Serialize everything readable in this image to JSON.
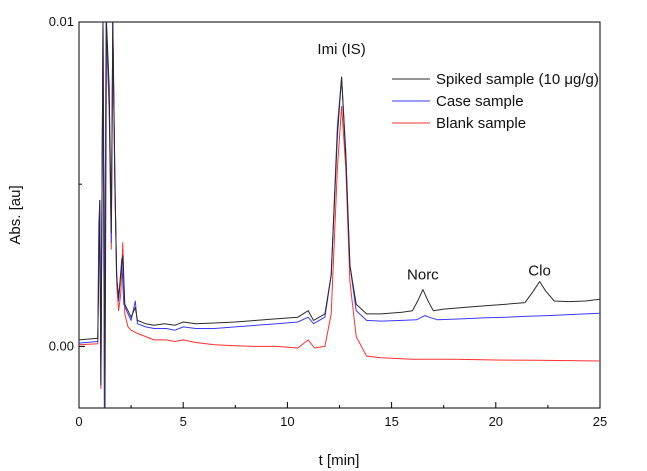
{
  "chart_data": {
    "type": "line",
    "title": "",
    "xlabel": "t [min]",
    "ylabel": "Abs. [au]",
    "xlim": [
      0,
      25
    ],
    "ylim": [
      -0.0019,
      0.01
    ],
    "x_ticks": [
      0,
      5,
      10,
      15,
      20,
      25
    ],
    "y_ticks": [
      0.0,
      0.01
    ],
    "y_tick_labels": [
      "0.00",
      "0.01"
    ],
    "grid": false,
    "legend_position": "top-right",
    "annotations": [
      {
        "text": "Imi (IS)",
        "x": 12.6,
        "y": 0.0087
      },
      {
        "text": "Norc",
        "x": 16.5,
        "y": 0.00175
      },
      {
        "text": "Clo",
        "x": 22.1,
        "y": 0.00188
      }
    ],
    "series": [
      {
        "name": "Spiked sample (10 μg/g)",
        "color": "#2b2b2b",
        "points": [
          [
            0,
            0.0002
          ],
          [
            0.9,
            0.00025
          ],
          [
            1.0,
            0.0045
          ],
          [
            1.05,
            -0.0012
          ],
          [
            1.15,
            0.01
          ],
          [
            1.25,
            -0.0019
          ],
          [
            1.32,
            0.01
          ],
          [
            1.45,
            0.008
          ],
          [
            1.55,
            0.0035
          ],
          [
            1.62,
            0.01
          ],
          [
            1.72,
            0.0055
          ],
          [
            1.8,
            0.0022
          ],
          [
            1.9,
            0.0015
          ],
          [
            2.0,
            0.0022
          ],
          [
            2.1,
            0.0028
          ],
          [
            2.2,
            0.0013
          ],
          [
            2.35,
            0.0011
          ],
          [
            2.5,
            0.0009
          ],
          [
            2.7,
            0.0012
          ],
          [
            2.8,
            0.0008
          ],
          [
            3.2,
            0.0007
          ],
          [
            3.6,
            0.00065
          ],
          [
            4.1,
            0.0007
          ],
          [
            4.6,
            0.00065
          ],
          [
            5.0,
            0.00075
          ],
          [
            5.6,
            0.0007
          ],
          [
            6.5,
            0.00072
          ],
          [
            7.5,
            0.00075
          ],
          [
            8.5,
            0.0008
          ],
          [
            9.5,
            0.00085
          ],
          [
            10.5,
            0.0009
          ],
          [
            11.0,
            0.0011
          ],
          [
            11.25,
            0.0008
          ],
          [
            11.8,
            0.001
          ],
          [
            12.1,
            0.0022
          ],
          [
            12.4,
            0.0065
          ],
          [
            12.6,
            0.0083
          ],
          [
            12.8,
            0.0058
          ],
          [
            13.0,
            0.0025
          ],
          [
            13.3,
            0.0013
          ],
          [
            13.8,
            0.001
          ],
          [
            14.5,
            0.001
          ],
          [
            15.5,
            0.00105
          ],
          [
            16.0,
            0.0011
          ],
          [
            16.25,
            0.0014
          ],
          [
            16.5,
            0.00175
          ],
          [
            16.75,
            0.0014
          ],
          [
            17.0,
            0.0011
          ],
          [
            17.5,
            0.00115
          ],
          [
            18.5,
            0.0012
          ],
          [
            19.5,
            0.00125
          ],
          [
            20.5,
            0.0013
          ],
          [
            21.4,
            0.00135
          ],
          [
            21.8,
            0.0017
          ],
          [
            22.1,
            0.002
          ],
          [
            22.4,
            0.0017
          ],
          [
            22.8,
            0.0014
          ],
          [
            23.5,
            0.00138
          ],
          [
            24.3,
            0.0014
          ],
          [
            25,
            0.00145
          ]
        ]
      },
      {
        "name": "Case sample",
        "color": "#3a3aff",
        "points": [
          [
            0,
            0.0001
          ],
          [
            0.9,
            0.00015
          ],
          [
            0.95,
            0.0038
          ],
          [
            1.0,
            0.0045
          ],
          [
            1.05,
            -0.0011
          ],
          [
            1.15,
            0.01
          ],
          [
            1.22,
            -0.0019
          ],
          [
            1.3,
            0.01
          ],
          [
            1.45,
            0.0075
          ],
          [
            1.55,
            0.0032
          ],
          [
            1.62,
            0.01
          ],
          [
            1.72,
            0.0051
          ],
          [
            1.82,
            0.002
          ],
          [
            1.9,
            0.0014
          ],
          [
            2.05,
            0.0027
          ],
          [
            2.15,
            0.0013
          ],
          [
            2.35,
            0.001
          ],
          [
            2.5,
            0.0008
          ],
          [
            2.7,
            0.0014
          ],
          [
            2.8,
            0.0007
          ],
          [
            3.2,
            0.0006
          ],
          [
            3.6,
            0.00055
          ],
          [
            4.2,
            0.00055
          ],
          [
            4.6,
            0.0005
          ],
          [
            5.0,
            0.0006
          ],
          [
            5.6,
            0.00055
          ],
          [
            6.5,
            0.00055
          ],
          [
            7.5,
            0.0006
          ],
          [
            8.5,
            0.00065
          ],
          [
            9.5,
            0.0007
          ],
          [
            10.5,
            0.00075
          ],
          [
            11.0,
            0.0009
          ],
          [
            11.25,
            0.0007
          ],
          [
            11.8,
            0.0009
          ],
          [
            12.1,
            0.0022
          ],
          [
            12.4,
            0.0068
          ],
          [
            12.6,
            0.0083
          ],
          [
            12.8,
            0.006
          ],
          [
            13.0,
            0.0025
          ],
          [
            13.3,
            0.0011
          ],
          [
            13.8,
            0.0008
          ],
          [
            14.5,
            0.00078
          ],
          [
            15.5,
            0.0008
          ],
          [
            16.2,
            0.00082
          ],
          [
            16.6,
            0.00095
          ],
          [
            16.8,
            0.0009
          ],
          [
            17.2,
            0.00082
          ],
          [
            18.5,
            0.00085
          ],
          [
            19.5,
            0.00088
          ],
          [
            20.5,
            0.0009
          ],
          [
            21.5,
            0.00093
          ],
          [
            22.5,
            0.00095
          ],
          [
            23.5,
            0.00098
          ],
          [
            24.3,
            0.001
          ],
          [
            25,
            0.00102
          ]
        ]
      },
      {
        "name": "Blank sample",
        "color": "#ff3030",
        "points": [
          [
            0,
            5e-05
          ],
          [
            0.9,
            8e-05
          ],
          [
            0.95,
            0.0032
          ],
          [
            1.0,
            0.0042
          ],
          [
            1.05,
            -0.0013
          ],
          [
            1.15,
            0.01
          ],
          [
            1.22,
            -0.0019
          ],
          [
            1.3,
            0.01
          ],
          [
            1.45,
            0.0072
          ],
          [
            1.55,
            0.003
          ],
          [
            1.62,
            0.01
          ],
          [
            1.72,
            0.005
          ],
          [
            1.82,
            0.0018
          ],
          [
            1.9,
            0.0011
          ],
          [
            2.0,
            0.0016
          ],
          [
            2.1,
            0.0032
          ],
          [
            2.2,
            0.001
          ],
          [
            2.35,
            0.0006
          ],
          [
            2.5,
            0.0005
          ],
          [
            2.8,
            0.0004
          ],
          [
            3.2,
            0.0003
          ],
          [
            3.6,
            0.0002
          ],
          [
            4.2,
            0.0002
          ],
          [
            4.6,
            0.00015
          ],
          [
            5.0,
            0.0002
          ],
          [
            5.6,
            0.00012
          ],
          [
            6.5,
            5e-05
          ],
          [
            7.5,
            2e-05
          ],
          [
            8.5,
            0.0
          ],
          [
            9.5,
            0.0
          ],
          [
            10.5,
            -5e-05
          ],
          [
            11.0,
            0.0002
          ],
          [
            11.3,
            -5e-05
          ],
          [
            11.8,
            0.0
          ],
          [
            12.1,
            0.001
          ],
          [
            12.4,
            0.0055
          ],
          [
            12.6,
            0.0074
          ],
          [
            12.8,
            0.0055
          ],
          [
            13.0,
            0.002
          ],
          [
            13.3,
            0.0003
          ],
          [
            13.8,
            -0.0003
          ],
          [
            14.5,
            -0.00035
          ],
          [
            16,
            -0.0004
          ],
          [
            18,
            -0.0004
          ],
          [
            20,
            -0.00042
          ],
          [
            22,
            -0.00043
          ],
          [
            25,
            -0.00045
          ]
        ]
      }
    ]
  }
}
